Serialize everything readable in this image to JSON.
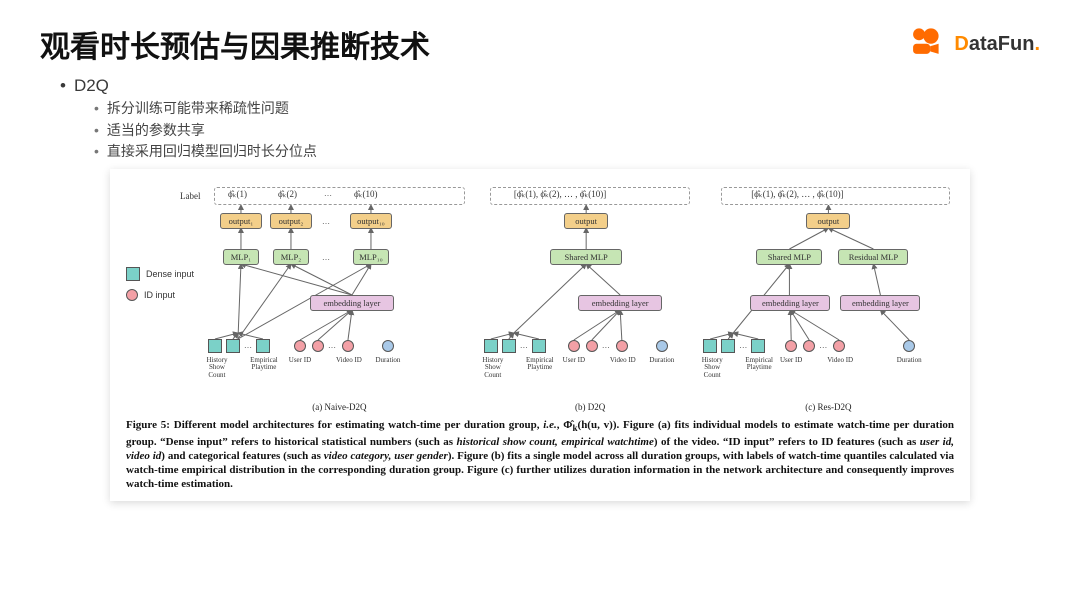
{
  "title": "观看时长预估与因果推断技术",
  "logos": {
    "datafun": "DataFun."
  },
  "section": {
    "heading": "D2Q",
    "bullets": [
      "拆分训练可能带来稀疏性问题",
      "适当的参数共享",
      "直接采用回归模型回归时长分位点"
    ]
  },
  "colors": {
    "dense_input": "#7bd1c8",
    "id_input": "#f3a0a6",
    "duration": "#a9c9e8",
    "mlp": "#c6e5b4",
    "output": "#f3cf8a",
    "embedding": "#e7c5e2",
    "arrow": "#666666",
    "dashed_border": "#999999"
  },
  "legend": {
    "dense": "Dense input",
    "id": "ID input"
  },
  "row_label": "Label",
  "subfigures": {
    "a": {
      "caption": "(a) Naive-D2Q",
      "label_items": [
        "ϕ̂ₖ(1)",
        "ϕ̂ₖ(2)",
        "ϕ̂ₖ(10)"
      ],
      "outputs": [
        "output₁",
        "output₂",
        "output₁₀"
      ],
      "mlps": [
        "MLP₁",
        "MLP₂",
        "MLP₁₀"
      ],
      "embed": "embedding layer",
      "dense_inputs": [
        "History\nShow\nCount",
        "Empirical\nPlaytime"
      ],
      "id_inputs": [
        "User ID",
        "Video ID"
      ],
      "duration": "Duration"
    },
    "b": {
      "caption": "(b) D2Q",
      "label": "[ϕ̂ₖ(1), ϕ̂ₖ(2), … , ϕ̂ₖ(10)]",
      "output": "output",
      "mlp": "Shared MLP",
      "embed": "embedding layer",
      "dense_inputs": [
        "History\nShow\nCount",
        "Empirical\nPlaytime"
      ],
      "id_inputs": [
        "User ID",
        "Video ID"
      ],
      "duration": "Duration"
    },
    "c": {
      "caption": "(c) Res-D2Q",
      "label": "[ϕ̂ₖ(1), ϕ̂ₖ(2), … , ϕ̂ₖ(10)]",
      "output": "output",
      "mlps": [
        "Shared MLP",
        "Residual MLP"
      ],
      "embeds": [
        "embedding layer",
        "embedding layer"
      ],
      "dense_inputs": [
        "History\nShow\nCount",
        "Empirical\nPlaytime"
      ],
      "id_inputs": [
        "User ID",
        "Video ID"
      ],
      "duration": "Duration"
    }
  },
  "caption_html": "<b>Figure 5: Different model architectures for estimating watch-time per duration group, <i>i.e.</i>, Φ̂<sub>k</sub>(h(u, v)). Figure (a) fits individual models to estimate watch-time per duration group. “Dense input” refers to historical statistical numbers (such as <i>historical show count, empirical watchtime</i>) of the video. “ID input” refers to ID features (such as <i>user id, video id</i>) and categorical features (such as <i>video category, user gender</i>). Figure (b) fits a single model across all duration groups, with labels of watch-time quantiles calculated via watch-time empirical distribution in the corresponding duration group. Figure (c) further utilizes duration information in the network architecture and consequently improves watch-time estimation.</b>",
  "layout": {
    "fig_a_left_pct": 11,
    "fig_a_width_pct": 30,
    "fig_b_left_pct": 44,
    "fig_b_width_pct": 24,
    "fig_c_left_pct": 70,
    "fig_c_width_pct": 29
  }
}
